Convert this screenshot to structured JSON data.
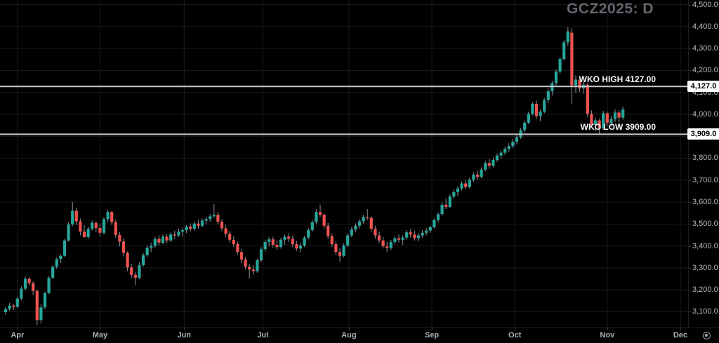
{
  "meta": {
    "symbol_label": "GCZ2025: D"
  },
  "colors": {
    "background": "#000000",
    "grid": "#1b1b1b",
    "up": "#26a69a",
    "down": "#ef5350",
    "wick": "#8f939b",
    "axis_text": "#b8bcc4",
    "title_text": "#63666e",
    "level_line": "#c8cace",
    "tag_bg": "#ffffff",
    "tag_text": "#000000"
  },
  "levels": {
    "high": {
      "label": "WKO HIGH 4127.00",
      "price": 4127,
      "tag": "4,127.0"
    },
    "low": {
      "label": "WKO LOW 3909.00",
      "price": 3909,
      "tag": "3,909.0"
    }
  },
  "time_axis": {
    "settings_icon": "axis-settings-gear"
  },
  "chart_data": {
    "type": "candlestick",
    "title": "GCZ2025: D",
    "xlabel": "",
    "ylabel": "",
    "ylim": [
      3031,
      4521
    ],
    "grid": true,
    "y_ticks": [
      {
        "price": 4500,
        "label": "4,500.0"
      },
      {
        "price": 4400,
        "label": "4,400.0"
      },
      {
        "price": 4300,
        "label": "4,300.0"
      },
      {
        "price": 4200,
        "label": "4,200.0"
      },
      {
        "price": 4100,
        "label": "4,100.0"
      },
      {
        "price": 4000,
        "label": "4,000.0"
      },
      {
        "price": 3900,
        "label": "3,900.0"
      },
      {
        "price": 3800,
        "label": "3,800.0"
      },
      {
        "price": 3700,
        "label": "3,700.0"
      },
      {
        "price": 3600,
        "label": "3,600.0"
      },
      {
        "price": 3500,
        "label": "3,500.0"
      },
      {
        "price": 3400,
        "label": "3,400.0"
      },
      {
        "price": 3300,
        "label": "3,300.0"
      },
      {
        "price": 3200,
        "label": "3,200.0"
      },
      {
        "price": 3100,
        "label": "3,100.0"
      }
    ],
    "x_months": [
      {
        "label": "Apr",
        "index": 3
      },
      {
        "label": "May",
        "index": 24
      },
      {
        "label": "Jun",
        "index": 45.4
      },
      {
        "label": "Jul",
        "index": 65.4
      },
      {
        "label": "Aug",
        "index": 87.3
      },
      {
        "label": "Sep",
        "index": 108.4
      },
      {
        "label": "Oct",
        "index": 129.5
      },
      {
        "label": "Nov",
        "index": 153
      },
      {
        "label": "Dec",
        "index": 171.6
      }
    ],
    "ohlc_columns": [
      "date",
      "open",
      "high",
      "low",
      "close"
    ],
    "ohlc": [
      [
        "2025-03-27",
        3098,
        3122,
        3085,
        3112
      ],
      [
        "2025-03-28",
        3112,
        3140,
        3104,
        3128
      ],
      [
        "2025-03-31",
        3128,
        3136,
        3108,
        3122
      ],
      [
        "2025-04-01",
        3122,
        3168,
        3118,
        3160
      ],
      [
        "2025-04-02",
        3160,
        3215,
        3152,
        3205
      ],
      [
        "2025-04-03",
        3205,
        3260,
        3196,
        3250
      ],
      [
        "2025-04-04",
        3250,
        3258,
        3218,
        3230
      ],
      [
        "2025-04-07",
        3230,
        3238,
        3178,
        3195
      ],
      [
        "2025-04-08",
        3195,
        3200,
        3040,
        3062
      ],
      [
        "2025-04-09",
        3062,
        3135,
        3046,
        3120
      ],
      [
        "2025-04-10",
        3120,
        3192,
        3112,
        3185
      ],
      [
        "2025-04-11",
        3185,
        3262,
        3180,
        3255
      ],
      [
        "2025-04-14",
        3255,
        3312,
        3248,
        3305
      ],
      [
        "2025-04-15",
        3305,
        3348,
        3295,
        3340
      ],
      [
        "2025-04-16",
        3340,
        3362,
        3322,
        3355
      ],
      [
        "2025-04-17",
        3355,
        3432,
        3350,
        3425
      ],
      [
        "2025-04-21",
        3425,
        3508,
        3420,
        3498
      ],
      [
        "2025-04-22",
        3498,
        3600,
        3490,
        3560
      ],
      [
        "2025-04-23",
        3560,
        3572,
        3495,
        3512
      ],
      [
        "2025-04-24",
        3512,
        3525,
        3448,
        3465
      ],
      [
        "2025-04-25",
        3465,
        3495,
        3438,
        3440
      ],
      [
        "2025-04-28",
        3440,
        3488,
        3432,
        3478
      ],
      [
        "2025-04-29",
        3478,
        3516,
        3470,
        3505
      ],
      [
        "2025-04-30",
        3505,
        3512,
        3462,
        3482
      ],
      [
        "2025-05-01",
        3482,
        3498,
        3445,
        3460
      ],
      [
        "2025-05-02",
        3460,
        3530,
        3452,
        3522
      ],
      [
        "2025-05-05",
        3522,
        3562,
        3510,
        3555
      ],
      [
        "2025-05-06",
        3555,
        3560,
        3495,
        3508
      ],
      [
        "2025-05-07",
        3508,
        3520,
        3438,
        3450
      ],
      [
        "2025-05-08",
        3450,
        3462,
        3398,
        3420
      ],
      [
        "2025-05-09",
        3420,
        3435,
        3352,
        3368
      ],
      [
        "2025-05-12",
        3368,
        3375,
        3285,
        3302
      ],
      [
        "2025-05-13",
        3302,
        3318,
        3252,
        3268
      ],
      [
        "2025-05-14",
        3268,
        3280,
        3222,
        3255
      ],
      [
        "2025-05-15",
        3255,
        3325,
        3248,
        3312
      ],
      [
        "2025-05-16",
        3312,
        3368,
        3305,
        3358
      ],
      [
        "2025-05-19",
        3358,
        3402,
        3350,
        3392
      ],
      [
        "2025-05-20",
        3392,
        3415,
        3372,
        3400
      ],
      [
        "2025-05-21",
        3400,
        3442,
        3388,
        3432
      ],
      [
        "2025-05-22",
        3432,
        3448,
        3402,
        3415
      ],
      [
        "2025-05-23",
        3415,
        3452,
        3408,
        3442
      ],
      [
        "2025-05-27",
        3442,
        3455,
        3412,
        3425
      ],
      [
        "2025-05-28",
        3425,
        3462,
        3418,
        3452
      ],
      [
        "2025-05-29",
        3452,
        3470,
        3432,
        3448
      ],
      [
        "2025-05-30",
        3448,
        3478,
        3440,
        3465
      ],
      [
        "2025-06-02",
        3465,
        3482,
        3442,
        3472
      ],
      [
        "2025-06-03",
        3472,
        3495,
        3458,
        3488
      ],
      [
        "2025-06-04",
        3488,
        3502,
        3465,
        3478
      ],
      [
        "2025-06-05",
        3478,
        3512,
        3470,
        3502
      ],
      [
        "2025-06-06",
        3502,
        3518,
        3478,
        3492
      ],
      [
        "2025-06-09",
        3492,
        3525,
        3485,
        3515
      ],
      [
        "2025-06-10",
        3515,
        3532,
        3498,
        3522
      ],
      [
        "2025-06-11",
        3522,
        3545,
        3510,
        3535
      ],
      [
        "2025-06-12",
        3535,
        3590,
        3528,
        3542
      ],
      [
        "2025-06-13",
        3542,
        3555,
        3498,
        3510
      ],
      [
        "2025-06-16",
        3510,
        3522,
        3468,
        3480
      ],
      [
        "2025-06-17",
        3480,
        3495,
        3442,
        3455
      ],
      [
        "2025-06-18",
        3455,
        3468,
        3415,
        3428
      ],
      [
        "2025-06-20",
        3428,
        3445,
        3395,
        3408
      ],
      [
        "2025-06-23",
        3408,
        3420,
        3360,
        3372
      ],
      [
        "2025-06-24",
        3372,
        3385,
        3322,
        3338
      ],
      [
        "2025-06-25",
        3338,
        3350,
        3292,
        3305
      ],
      [
        "2025-06-26",
        3305,
        3318,
        3252,
        3292
      ],
      [
        "2025-06-27",
        3292,
        3312,
        3268,
        3285
      ],
      [
        "2025-06-30",
        3285,
        3342,
        3278,
        3335
      ],
      [
        "2025-07-01",
        3335,
        3395,
        3328,
        3385
      ],
      [
        "2025-07-02",
        3385,
        3428,
        3375,
        3418
      ],
      [
        "2025-07-03",
        3418,
        3440,
        3398,
        3430
      ],
      [
        "2025-07-07",
        3430,
        3442,
        3392,
        3405
      ],
      [
        "2025-07-08",
        3405,
        3425,
        3382,
        3395
      ],
      [
        "2025-07-09",
        3395,
        3438,
        3388,
        3428
      ],
      [
        "2025-07-10",
        3428,
        3452,
        3405,
        3442
      ],
      [
        "2025-07-11",
        3442,
        3458,
        3418,
        3432
      ],
      [
        "2025-07-14",
        3432,
        3448,
        3395,
        3408
      ],
      [
        "2025-07-15",
        3408,
        3422,
        3378,
        3388
      ],
      [
        "2025-07-16",
        3388,
        3412,
        3372,
        3402
      ],
      [
        "2025-07-17",
        3402,
        3445,
        3395,
        3438
      ],
      [
        "2025-07-18",
        3438,
        3482,
        3430,
        3472
      ],
      [
        "2025-07-21",
        3472,
        3518,
        3465,
        3508
      ],
      [
        "2025-07-22",
        3508,
        3568,
        3500,
        3555
      ],
      [
        "2025-07-23",
        3555,
        3588,
        3532,
        3542
      ],
      [
        "2025-07-24",
        3542,
        3548,
        3478,
        3492
      ],
      [
        "2025-07-25",
        3492,
        3505,
        3432,
        3445
      ],
      [
        "2025-07-28",
        3445,
        3458,
        3395,
        3408
      ],
      [
        "2025-07-29",
        3408,
        3422,
        3358,
        3372
      ],
      [
        "2025-07-30",
        3372,
        3388,
        3328,
        3355
      ],
      [
        "2025-07-31",
        3355,
        3412,
        3348,
        3402
      ],
      [
        "2025-08-01",
        3402,
        3458,
        3395,
        3448
      ],
      [
        "2025-08-04",
        3448,
        3485,
        3440,
        3475
      ],
      [
        "2025-08-05",
        3475,
        3502,
        3462,
        3492
      ],
      [
        "2025-08-06",
        3492,
        3522,
        3480,
        3512
      ],
      [
        "2025-08-07",
        3512,
        3542,
        3502,
        3532
      ],
      [
        "2025-08-08",
        3532,
        3568,
        3518,
        3528
      ],
      [
        "2025-08-11",
        3528,
        3535,
        3465,
        3478
      ],
      [
        "2025-08-12",
        3478,
        3492,
        3432,
        3448
      ],
      [
        "2025-08-13",
        3448,
        3465,
        3412,
        3425
      ],
      [
        "2025-08-14",
        3425,
        3442,
        3388,
        3398
      ],
      [
        "2025-08-15",
        3398,
        3418,
        3372,
        3390
      ],
      [
        "2025-08-18",
        3390,
        3428,
        3382,
        3418
      ],
      [
        "2025-08-19",
        3418,
        3445,
        3408,
        3435
      ],
      [
        "2025-08-20",
        3435,
        3452,
        3415,
        3428
      ],
      [
        "2025-08-21",
        3428,
        3448,
        3405,
        3438
      ],
      [
        "2025-08-22",
        3438,
        3472,
        3428,
        3462
      ],
      [
        "2025-08-25",
        3462,
        3478,
        3438,
        3452
      ],
      [
        "2025-08-26",
        3452,
        3468,
        3425,
        3435
      ],
      [
        "2025-08-27",
        3435,
        3458,
        3422,
        3448
      ],
      [
        "2025-08-28",
        3448,
        3472,
        3438,
        3460
      ],
      [
        "2025-08-29",
        3460,
        3482,
        3448,
        3470
      ],
      [
        "2025-09-02",
        3470,
        3492,
        3460,
        3485
      ],
      [
        "2025-09-03",
        3485,
        3525,
        3478,
        3518
      ],
      [
        "2025-09-04",
        3518,
        3552,
        3508,
        3545
      ],
      [
        "2025-09-05",
        3545,
        3598,
        3538,
        3588
      ],
      [
        "2025-09-08",
        3588,
        3615,
        3568,
        3578
      ],
      [
        "2025-09-09",
        3578,
        3635,
        3572,
        3625
      ],
      [
        "2025-09-10",
        3625,
        3658,
        3615,
        3645
      ],
      [
        "2025-09-11",
        3645,
        3672,
        3628,
        3662
      ],
      [
        "2025-09-12",
        3662,
        3695,
        3652,
        3685
      ],
      [
        "2025-09-15",
        3685,
        3702,
        3658,
        3668
      ],
      [
        "2025-09-16",
        3668,
        3712,
        3662,
        3702
      ],
      [
        "2025-09-17",
        3702,
        3735,
        3692,
        3725
      ],
      [
        "2025-09-18",
        3725,
        3742,
        3702,
        3715
      ],
      [
        "2025-09-19",
        3715,
        3758,
        3708,
        3748
      ],
      [
        "2025-09-22",
        3748,
        3788,
        3740,
        3778
      ],
      [
        "2025-09-23",
        3778,
        3795,
        3752,
        3765
      ],
      [
        "2025-09-24",
        3765,
        3802,
        3758,
        3792
      ],
      [
        "2025-09-25",
        3792,
        3822,
        3782,
        3812
      ],
      [
        "2025-09-26",
        3812,
        3835,
        3798,
        3825
      ],
      [
        "2025-09-29",
        3825,
        3852,
        3815,
        3842
      ],
      [
        "2025-09-30",
        3842,
        3868,
        3828,
        3855
      ],
      [
        "2025-10-01",
        3855,
        3888,
        3845,
        3875
      ],
      [
        "2025-10-02",
        3875,
        3905,
        3862,
        3895
      ],
      [
        "2025-10-03",
        3895,
        3938,
        3888,
        3928
      ],
      [
        "2025-10-06",
        3928,
        3972,
        3920,
        3962
      ],
      [
        "2025-10-07",
        3962,
        4012,
        3955,
        4002
      ],
      [
        "2025-10-08",
        4002,
        4055,
        3995,
        4048
      ],
      [
        "2025-10-09",
        4048,
        4062,
        3978,
        3992
      ],
      [
        "2025-10-10",
        3992,
        4022,
        3968,
        4012
      ],
      [
        "2025-10-13",
        4012,
        4075,
        4005,
        4065
      ],
      [
        "2025-10-14",
        4065,
        4118,
        4052,
        4105
      ],
      [
        "2025-10-15",
        4105,
        4152,
        4085,
        4142
      ],
      [
        "2025-10-16",
        4142,
        4205,
        4132,
        4195
      ],
      [
        "2025-10-17",
        4195,
        4262,
        4185,
        4252
      ],
      [
        "2025-10-20",
        4252,
        4338,
        4245,
        4328
      ],
      [
        "2025-10-21",
        4328,
        4398,
        4312,
        4378
      ],
      [
        "2025-10-22",
        4372,
        4392,
        4045,
        4132
      ],
      [
        "2025-10-23",
        4132,
        4178,
        4098,
        4158
      ],
      [
        "2025-10-24",
        4158,
        4165,
        4102,
        4118
      ],
      [
        "2025-10-27",
        4118,
        4148,
        4095,
        4135
      ],
      [
        "2025-10-28",
        4135,
        4142,
        3988,
        4002
      ],
      [
        "2025-10-29",
        4002,
        4018,
        3938,
        3952
      ],
      [
        "2025-10-30",
        3952,
        3985,
        3922,
        3972
      ],
      [
        "2025-10-31",
        3972,
        3980,
        3909,
        3935
      ],
      [
        "2025-11-03",
        3935,
        4015,
        3928,
        4005
      ],
      [
        "2025-11-04",
        4005,
        4012,
        3945,
        3960
      ],
      [
        "2025-11-05",
        3960,
        3992,
        3942,
        3978
      ],
      [
        "2025-11-06",
        3978,
        4022,
        3965,
        4008
      ],
      [
        "2025-11-07",
        4008,
        4018,
        3962,
        3985
      ],
      [
        "2025-11-10",
        3985,
        4035,
        3975,
        4022
      ]
    ],
    "levels": [
      {
        "name": "WKO HIGH",
        "price": 4127,
        "label": "WKO HIGH 4127.00",
        "axis_tag": "4,127.0"
      },
      {
        "name": "WKO LOW",
        "price": 3909,
        "label": "WKO LOW 3909.00",
        "axis_tag": "3,909.0"
      }
    ],
    "legend": "none"
  }
}
